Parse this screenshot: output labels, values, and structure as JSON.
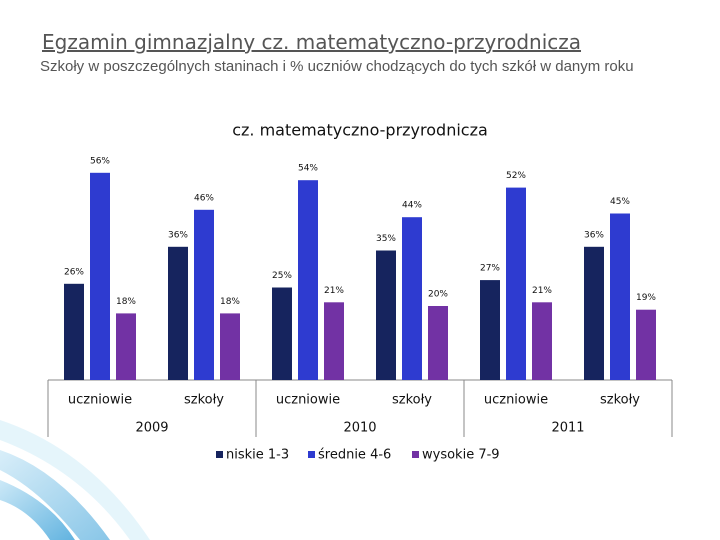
{
  "slide": {
    "title": "Egzamin gimnazjalny cz. matematyczno-przyrodnicza",
    "subtitle": "Szkoły w poszczególnych staninach i % uczniów chodzących do tych szkół w danym roku"
  },
  "chart_data": {
    "type": "bar",
    "title": "cz. matematyczno-przyrodnicza",
    "categories": [
      "uczniowie",
      "szkoły",
      "uczniowie",
      "szkoły",
      "uczniowie",
      "szkoły"
    ],
    "category_groups": [
      "2009",
      "2010",
      "2011"
    ],
    "series": [
      {
        "name": "niskie 1-3",
        "color": "#16245e",
        "values": [
          26,
          36,
          25,
          35,
          27,
          36
        ],
        "value_labels": [
          "26%",
          "36%",
          "25%",
          "35%",
          "27%",
          "36%"
        ]
      },
      {
        "name": "średnie 4-6",
        "color": "#2e3bd0",
        "values": [
          56,
          46,
          54,
          44,
          52,
          45
        ],
        "value_labels": [
          "56%",
          "46%",
          "54%",
          "44%",
          "52%",
          "45%"
        ]
      },
      {
        "name": "wysokie 7-9",
        "color": "#7232a4",
        "values": [
          18,
          18,
          21,
          20,
          21,
          19
        ],
        "value_labels": [
          "18%",
          "18%",
          "21%",
          "20%",
          "21%",
          "19%"
        ]
      }
    ],
    "legend": "bottom"
  }
}
